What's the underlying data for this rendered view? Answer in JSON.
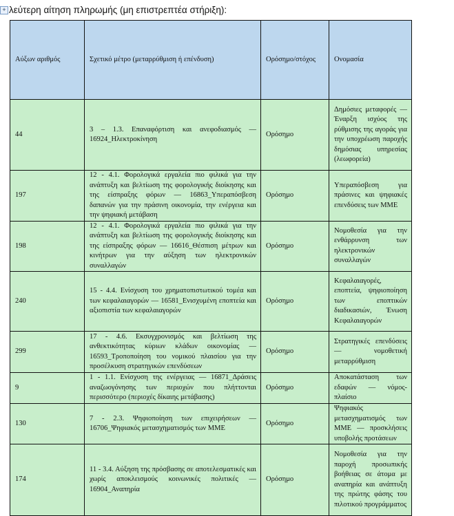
{
  "title": "Δεύτερη αίτηση πληρωμής (μη επιστρεπτέα στήριξη):",
  "title_visible": "λεύτερη αίτηση πληρωμής (μη επιστρεπτέα στήριξη):",
  "colors": {
    "header_bg": "#bdd7ee",
    "row_bg": "#c8eecb"
  },
  "table": {
    "headers": [
      "Αύξων αριθμός",
      "Σχετικό μέτρο (μεταρρύθμιση ή επένδυση)",
      "Ορόσημο/στόχος",
      "Ονομασία"
    ],
    "rows": [
      {
        "num": "44",
        "measure": "3 – 1.3. Επαναφόρτιση και ανεφοδιασμός — 16924_Ηλεκτροκίνηση",
        "type": "Ορόσημο",
        "name": "Δημόσιες μεταφορές — Έναρξη ισχύος της ρύθμισης της αγοράς για την υποχρέωση παροχής δημόσιας υπηρεσίας (λεωφορεία)"
      },
      {
        "num": "197",
        "measure": "12 - 4.1. Φορολογικά εργαλεία πιο φιλικά για την ανάπτυξη και βελτίωση της φορολογικής διοίκησης και της είσπραξης φόρων — 16863_Υπεραπόσβεση δαπανών για την πράσινη οικονομία, την ενέργεια και την ψηφιακή μετάβαση",
        "type": "Ορόσημο",
        "name": "Υπεραπόσβεση για πράσινες και ψηφιακές επενδύσεις των ΜΜΕ"
      },
      {
        "num": "198",
        "measure": "12 - 4.1. Φορολογικά εργαλεία πιο φιλικά για την ανάπτυξη και βελτίωση της φορολογικής διοίκησης και της είσπραξης φόρων — 16616_Θέσπιση μέτρων και κινήτρων για την αύξηση των ηλεκτρονικών συναλλαγών",
        "type": "Ορόσημο",
        "name": "Νομοθεσία για την ενθάρρυνση των ηλεκτρονικών συναλλαγών"
      },
      {
        "num": "240",
        "measure": "15 - 4.4. Ενίσχυση του χρηματοπιστωτικού τομέα και των κεφαλαιαγορών — 16581_Ενισχυμένη εποπτεία και αξιοπιστία των κεφαλαιαγορών",
        "type": "Ορόσημο",
        "name": "Κεφαλαιαγορές, εποπτεία, ψηφιοποίηση των εποπτικών διαδικασιών, Ένωση Κεφαλαιαγορών"
      },
      {
        "num": "299",
        "measure": "17 - 4.6. Εκσυγχρονισμός και βελτίωση της ανθεκτικότητας κύριων κλάδων οικονομίας — 16593_Τροποποίηση του νομικού πλαισίου για την προσέλκυση στρατηγικών επενδύσεων",
        "type": "Ορόσημο",
        "name": "Στρατηγικές επενδύσεις — νομοθετική μεταρρύθμιση"
      },
      {
        "num": "9",
        "measure": "1 - 1.1. Ενίσχυση της ενέργειας — 16871_Δράσεις αναζωογόνησης των περιοχών που πλήττονται περισσότερο (περιοχές δίκαιης μετάβασης)",
        "type": "Ορόσημο",
        "name": "Αποκατάσταση των εδαφών — νόμος-πλαίσιο"
      },
      {
        "num": "130",
        "measure": "7 - 2.3. Ψηφιοποίηση των επιχειρήσεων — 16706_Ψηφιακός μετασχηματισμός των ΜΜΕ",
        "type": "Ορόσημο",
        "name": "Ψηφιακός μετασχηματισμός των ΜΜΕ — προσκλήσεις υποβολής προτάσεων"
      },
      {
        "num": "174",
        "measure": "11 - 3.4. Αύξηση της πρόσβασης σε αποτελεσματικές και χωρίς αποκλεισμούς κοινωνικές πολιτικές — 16904_Αναπηρία",
        "type": "Ορόσημο",
        "name": "Νομοθεσία για την παροχή προσωπικής βοήθειας σε άτομα με αναπηρία και ανάπτυξη της πρώτης φάσης του πιλοτικού προγράμματος"
      }
    ]
  }
}
